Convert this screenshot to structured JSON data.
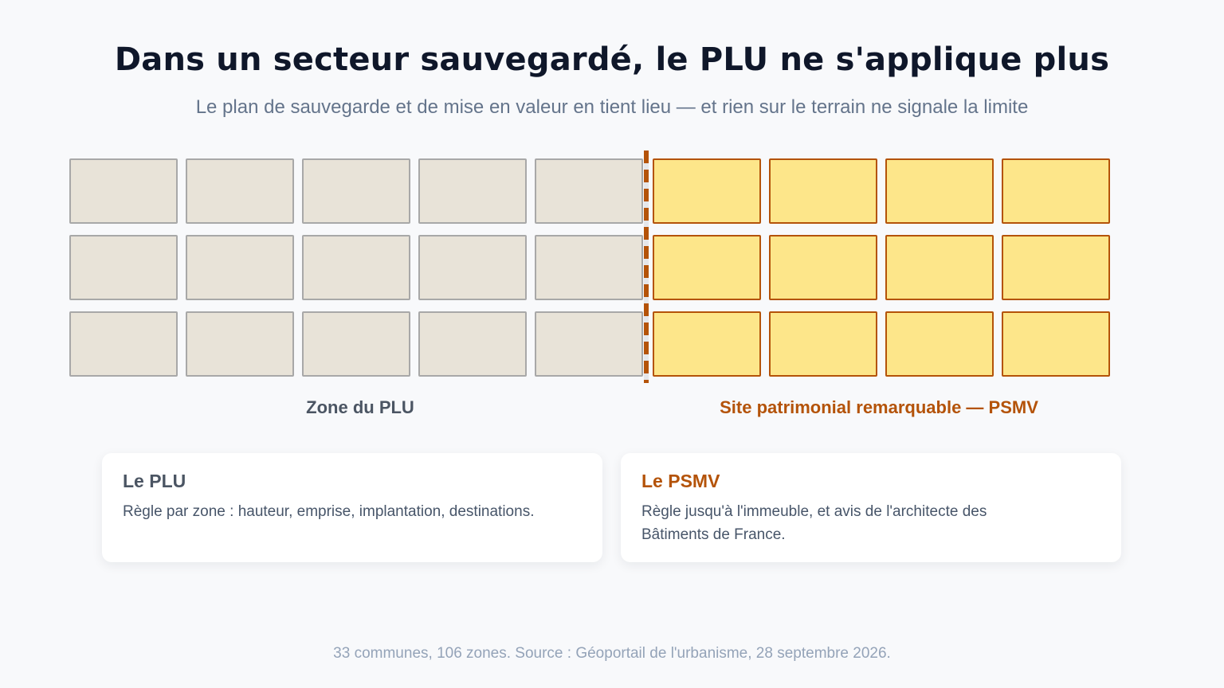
{
  "header": {
    "title": "Dans un secteur sauvegardé, le PLU ne s'applique plus",
    "subtitle": "Le plan de sauvegarde et de mise en valeur en tient lieu — et rien sur le terrain ne signale la limite"
  },
  "diagram": {
    "rows": 3,
    "plu_columns": 5,
    "psmv_columns": 4,
    "zones": {
      "plu_label": "Zone du PLU",
      "psmv_label": "Site patrimonial remarquable — PSMV"
    },
    "colors": {
      "plu_fill": "#e8e3d8",
      "plu_border": "#a8a8a8",
      "psmv_fill": "#fde68a",
      "psmv_border": "#b45309",
      "boundary": "#b45309"
    }
  },
  "cards": {
    "plu": {
      "title": "Le PLU",
      "body": "Règle par zone : hauteur, emprise, implantation, destinations."
    },
    "psmv": {
      "title": "Le PSMV",
      "body": "Règle jusqu'à l'immeuble, et avis de l'architecte des Bâtiments de France."
    }
  },
  "footer": {
    "source": "33 communes, 106 zones. Source : Géoportail de l'urbanisme, 28 septembre 2026."
  }
}
